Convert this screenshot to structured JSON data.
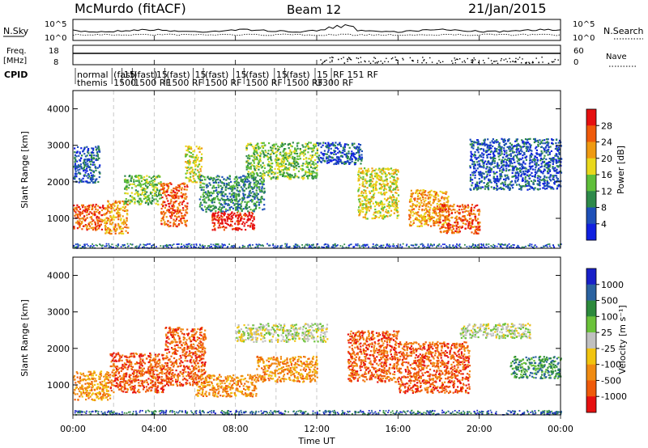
{
  "header": {
    "station": "McMurdo (fitACF)",
    "beam": "Beam 12",
    "date": "21/Jan/2015"
  },
  "top_panels": {
    "nsky_label": "N.Sky",
    "nsky_tick_top": "10^5",
    "nsky_tick_bottom": "10^0",
    "nsearch_label": "N.Search",
    "nsearch_tick_top": "10^5",
    "nsearch_tick_bottom": "10^0",
    "freq_label_1": "Freq.",
    "freq_label_2": "[MHz]",
    "freq_tick_top": "18",
    "freq_tick_bottom": "8",
    "nave_label": "Nave",
    "nave_tick_top": "60",
    "nave_tick_bottom": "0",
    "cpid_label": "CPID"
  },
  "cpid_modes": [
    {
      "hour": 0.2,
      "row1": "normal",
      "row2": "themis"
    },
    {
      "hour": 2.0,
      "row1": "(fast)",
      "row2": "1500"
    },
    {
      "hour": 2.5,
      "row1": "15"
    },
    {
      "hour": 3.0,
      "row1": "(fast)",
      "row2": "1500 RF"
    },
    {
      "hour": 4.1,
      "row1": "15"
    },
    {
      "hour": 4.6,
      "row1": "(fast)",
      "row2": "1500 RF"
    },
    {
      "hour": 6.0,
      "row1": "15"
    },
    {
      "hour": 6.5,
      "row1": "(fast)",
      "row2": "1500 RF"
    },
    {
      "hour": 8.0,
      "row1": "15"
    },
    {
      "hour": 8.5,
      "row1": "(fast)",
      "row2": "1500 RF"
    },
    {
      "hour": 10.0,
      "row1": "15"
    },
    {
      "hour": 10.5,
      "row1": "(fast)",
      "row2": "1500 RF"
    },
    {
      "hour": 12.0,
      "row1": "15",
      "row2": "3300 RF"
    },
    {
      "hour": 12.8,
      "row1": "RF 151 RF"
    }
  ],
  "chart_data": [
    {
      "type": "heatmap",
      "panel": "power",
      "ylabel": "Slant Range [km]",
      "x_range_hours": [
        0,
        24
      ],
      "ylim": [
        180,
        4500
      ],
      "y_ticks": [
        1000,
        2000,
        3000,
        4000
      ],
      "colorbar_label": "Power [dB]",
      "colorbar_ticks": [
        "4",
        "8",
        "12",
        "16",
        "20",
        "24",
        "28"
      ],
      "colorscale": [
        "#1020e0",
        "#1e50b8",
        "#2e8a4a",
        "#5fbf3a",
        "#e9d81c",
        "#ef9a12",
        "#ef5a0a",
        "#e61010"
      ],
      "features": [
        {
          "t0": 0.0,
          "t1": 1.3,
          "r0": 2000,
          "r1": 3000,
          "level": 1
        },
        {
          "t0": 0.0,
          "t1": 1.5,
          "r0": 700,
          "r1": 1400,
          "level": 6
        },
        {
          "t0": 1.5,
          "t1": 2.7,
          "r0": 600,
          "r1": 1500,
          "level": 5
        },
        {
          "t0": 2.5,
          "t1": 4.3,
          "r0": 1400,
          "r1": 2200,
          "level": 3
        },
        {
          "t0": 4.3,
          "t1": 5.6,
          "r0": 800,
          "r1": 2000,
          "level": 6
        },
        {
          "t0": 5.5,
          "t1": 6.3,
          "r0": 2000,
          "r1": 3000,
          "level": 4
        },
        {
          "t0": 6.8,
          "t1": 8.9,
          "r0": 700,
          "r1": 1200,
          "level": 7
        },
        {
          "t0": 6.2,
          "t1": 9.4,
          "r0": 1200,
          "r1": 2200,
          "level": 2
        },
        {
          "t0": 8.5,
          "t1": 12.0,
          "r0": 2100,
          "r1": 3100,
          "level": 3
        },
        {
          "t0": 12.0,
          "t1": 14.2,
          "r0": 2500,
          "r1": 3100,
          "level": 1
        },
        {
          "t0": 14.0,
          "t1": 16.0,
          "r0": 1000,
          "r1": 2400,
          "level": 4
        },
        {
          "t0": 16.5,
          "t1": 18.5,
          "r0": 800,
          "r1": 1800,
          "level": 5
        },
        {
          "t0": 18.0,
          "t1": 20.0,
          "r0": 600,
          "r1": 1400,
          "level": 6
        },
        {
          "t0": 19.5,
          "t1": 24.0,
          "r0": 1800,
          "r1": 3200,
          "level": 1
        }
      ]
    },
    {
      "type": "heatmap",
      "panel": "velocity",
      "ylabel": "Slant Range [km]",
      "xlabel": "Time UT",
      "x_range_hours": [
        0,
        24
      ],
      "x_ticks": [
        "00:00",
        "04:00",
        "08:00",
        "12:00",
        "16:00",
        "20:00",
        "00:00"
      ],
      "ylim": [
        180,
        4500
      ],
      "y_ticks": [
        1000,
        2000,
        3000,
        4000
      ],
      "colorbar_label": "Velocity [m s⁻¹]",
      "colorbar_ticks": [
        "1000",
        "500",
        "100",
        "25",
        "-25",
        "-100",
        "-500",
        "-1000"
      ],
      "colorscale": [
        "#1820c8",
        "#2a62a0",
        "#2c8a3c",
        "#6bc23a",
        "#c0c0c0",
        "#f1c40f",
        "#f08b12",
        "#ef5a0a",
        "#e61010"
      ],
      "features": [
        {
          "t0": 0.0,
          "t1": 1.8,
          "r0": 600,
          "r1": 1400,
          "level": 6
        },
        {
          "t0": 1.8,
          "t1": 4.5,
          "r0": 800,
          "r1": 1900,
          "level": 7
        },
        {
          "t0": 4.5,
          "t1": 6.5,
          "r0": 1000,
          "r1": 2600,
          "level": 7
        },
        {
          "t0": 6.0,
          "t1": 9.0,
          "r0": 700,
          "r1": 1300,
          "level": 6
        },
        {
          "t0": 8.0,
          "t1": 12.5,
          "r0": 2200,
          "r1": 2700,
          "level": 4
        },
        {
          "t0": 9.0,
          "t1": 12.0,
          "r0": 1100,
          "r1": 1800,
          "level": 6
        },
        {
          "t0": 13.5,
          "t1": 16.0,
          "r0": 1100,
          "r1": 2500,
          "level": 7
        },
        {
          "t0": 16.0,
          "t1": 19.5,
          "r0": 800,
          "r1": 2200,
          "level": 7
        },
        {
          "t0": 19.0,
          "t1": 22.5,
          "r0": 2300,
          "r1": 2700,
          "level": 4
        },
        {
          "t0": 21.5,
          "t1": 24.0,
          "r0": 1200,
          "r1": 1800,
          "level": 2
        }
      ]
    }
  ]
}
